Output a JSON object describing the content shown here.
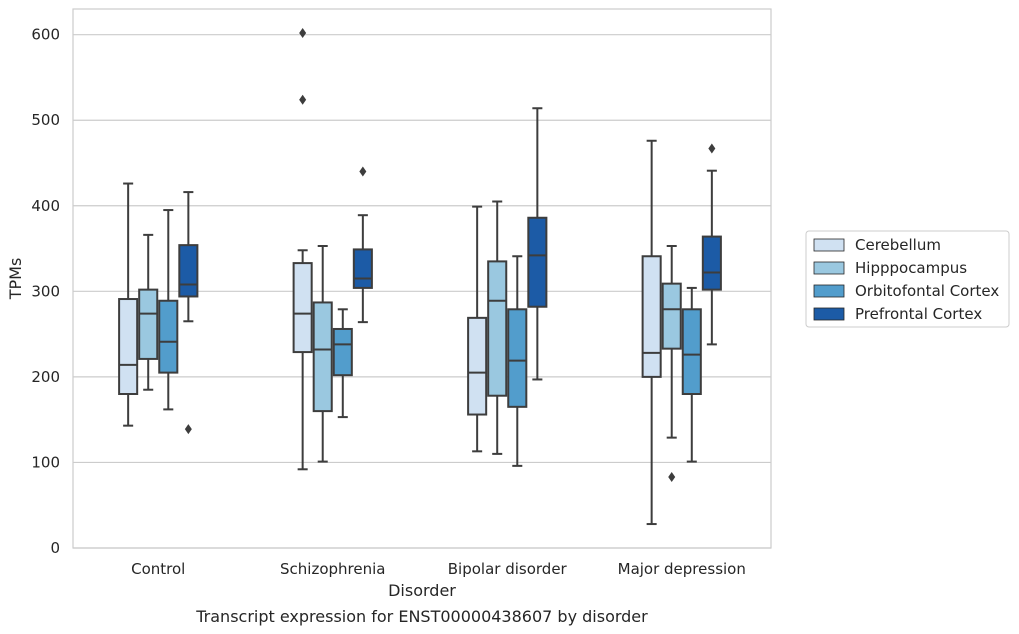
{
  "chart_data": {
    "type": "box",
    "xlabel": "Disorder",
    "ylabel": "TPMs",
    "caption": "Transcript expression for ENST00000438607 by disorder",
    "ylim": [
      0,
      630
    ],
    "yticks": [
      0,
      100,
      200,
      300,
      400,
      500,
      600
    ],
    "grid": "horizontal",
    "legend_position": "right",
    "categories": [
      "Control",
      "Schizophrenia",
      "Bipolar disorder",
      "Major depression"
    ],
    "series": [
      {
        "name": "Cerebellum",
        "color": "#d0e1f2",
        "boxes": [
          {
            "whisker_low": 143,
            "q1": 180,
            "median": 214,
            "q3": 291,
            "whisker_high": 426,
            "outliers": []
          },
          {
            "whisker_low": 92,
            "q1": 229,
            "median": 274,
            "q3": 333,
            "whisker_high": 348,
            "outliers": [
              524,
              602
            ]
          },
          {
            "whisker_low": 113,
            "q1": 156,
            "median": 205,
            "q3": 269,
            "whisker_high": 399,
            "outliers": []
          },
          {
            "whisker_low": 28,
            "q1": 200,
            "median": 228,
            "q3": 341,
            "whisker_high": 476,
            "outliers": []
          }
        ]
      },
      {
        "name": "Hipppocampus",
        "color": "#9ac8e0",
        "boxes": [
          {
            "whisker_low": 185,
            "q1": 221,
            "median": 274,
            "q3": 302,
            "whisker_high": 366,
            "outliers": []
          },
          {
            "whisker_low": 101,
            "q1": 160,
            "median": 232,
            "q3": 287,
            "whisker_high": 353,
            "outliers": []
          },
          {
            "whisker_low": 110,
            "q1": 178,
            "median": 289,
            "q3": 335,
            "whisker_high": 405,
            "outliers": []
          },
          {
            "whisker_low": 129,
            "q1": 233,
            "median": 279,
            "q3": 309,
            "whisker_high": 353,
            "outliers": [
              83
            ]
          }
        ]
      },
      {
        "name": "Orbitofontal Cortex",
        "color": "#529dcc",
        "boxes": [
          {
            "whisker_low": 162,
            "q1": 205,
            "median": 241,
            "q3": 289,
            "whisker_high": 395,
            "outliers": []
          },
          {
            "whisker_low": 153,
            "q1": 202,
            "median": 238,
            "q3": 256,
            "whisker_high": 279,
            "outliers": []
          },
          {
            "whisker_low": 96,
            "q1": 165,
            "median": 219,
            "q3": 279,
            "whisker_high": 341,
            "outliers": []
          },
          {
            "whisker_low": 101,
            "q1": 180,
            "median": 226,
            "q3": 279,
            "whisker_high": 304,
            "outliers": []
          }
        ]
      },
      {
        "name": "Prefrontal Cortex",
        "color": "#1c5ba6",
        "boxes": [
          {
            "whisker_low": 265,
            "q1": 294,
            "median": 308,
            "q3": 354,
            "whisker_high": 416,
            "outliers": [
              139
            ]
          },
          {
            "whisker_low": 264,
            "q1": 304,
            "median": 315,
            "q3": 349,
            "whisker_high": 389,
            "outliers": [
              440
            ]
          },
          {
            "whisker_low": 197,
            "q1": 282,
            "median": 342,
            "q3": 386,
            "whisker_high": 514,
            "outliers": []
          },
          {
            "whisker_low": 238,
            "q1": 302,
            "median": 322,
            "q3": 364,
            "whisker_high": 441,
            "outliers": [
              467
            ]
          }
        ]
      }
    ]
  }
}
